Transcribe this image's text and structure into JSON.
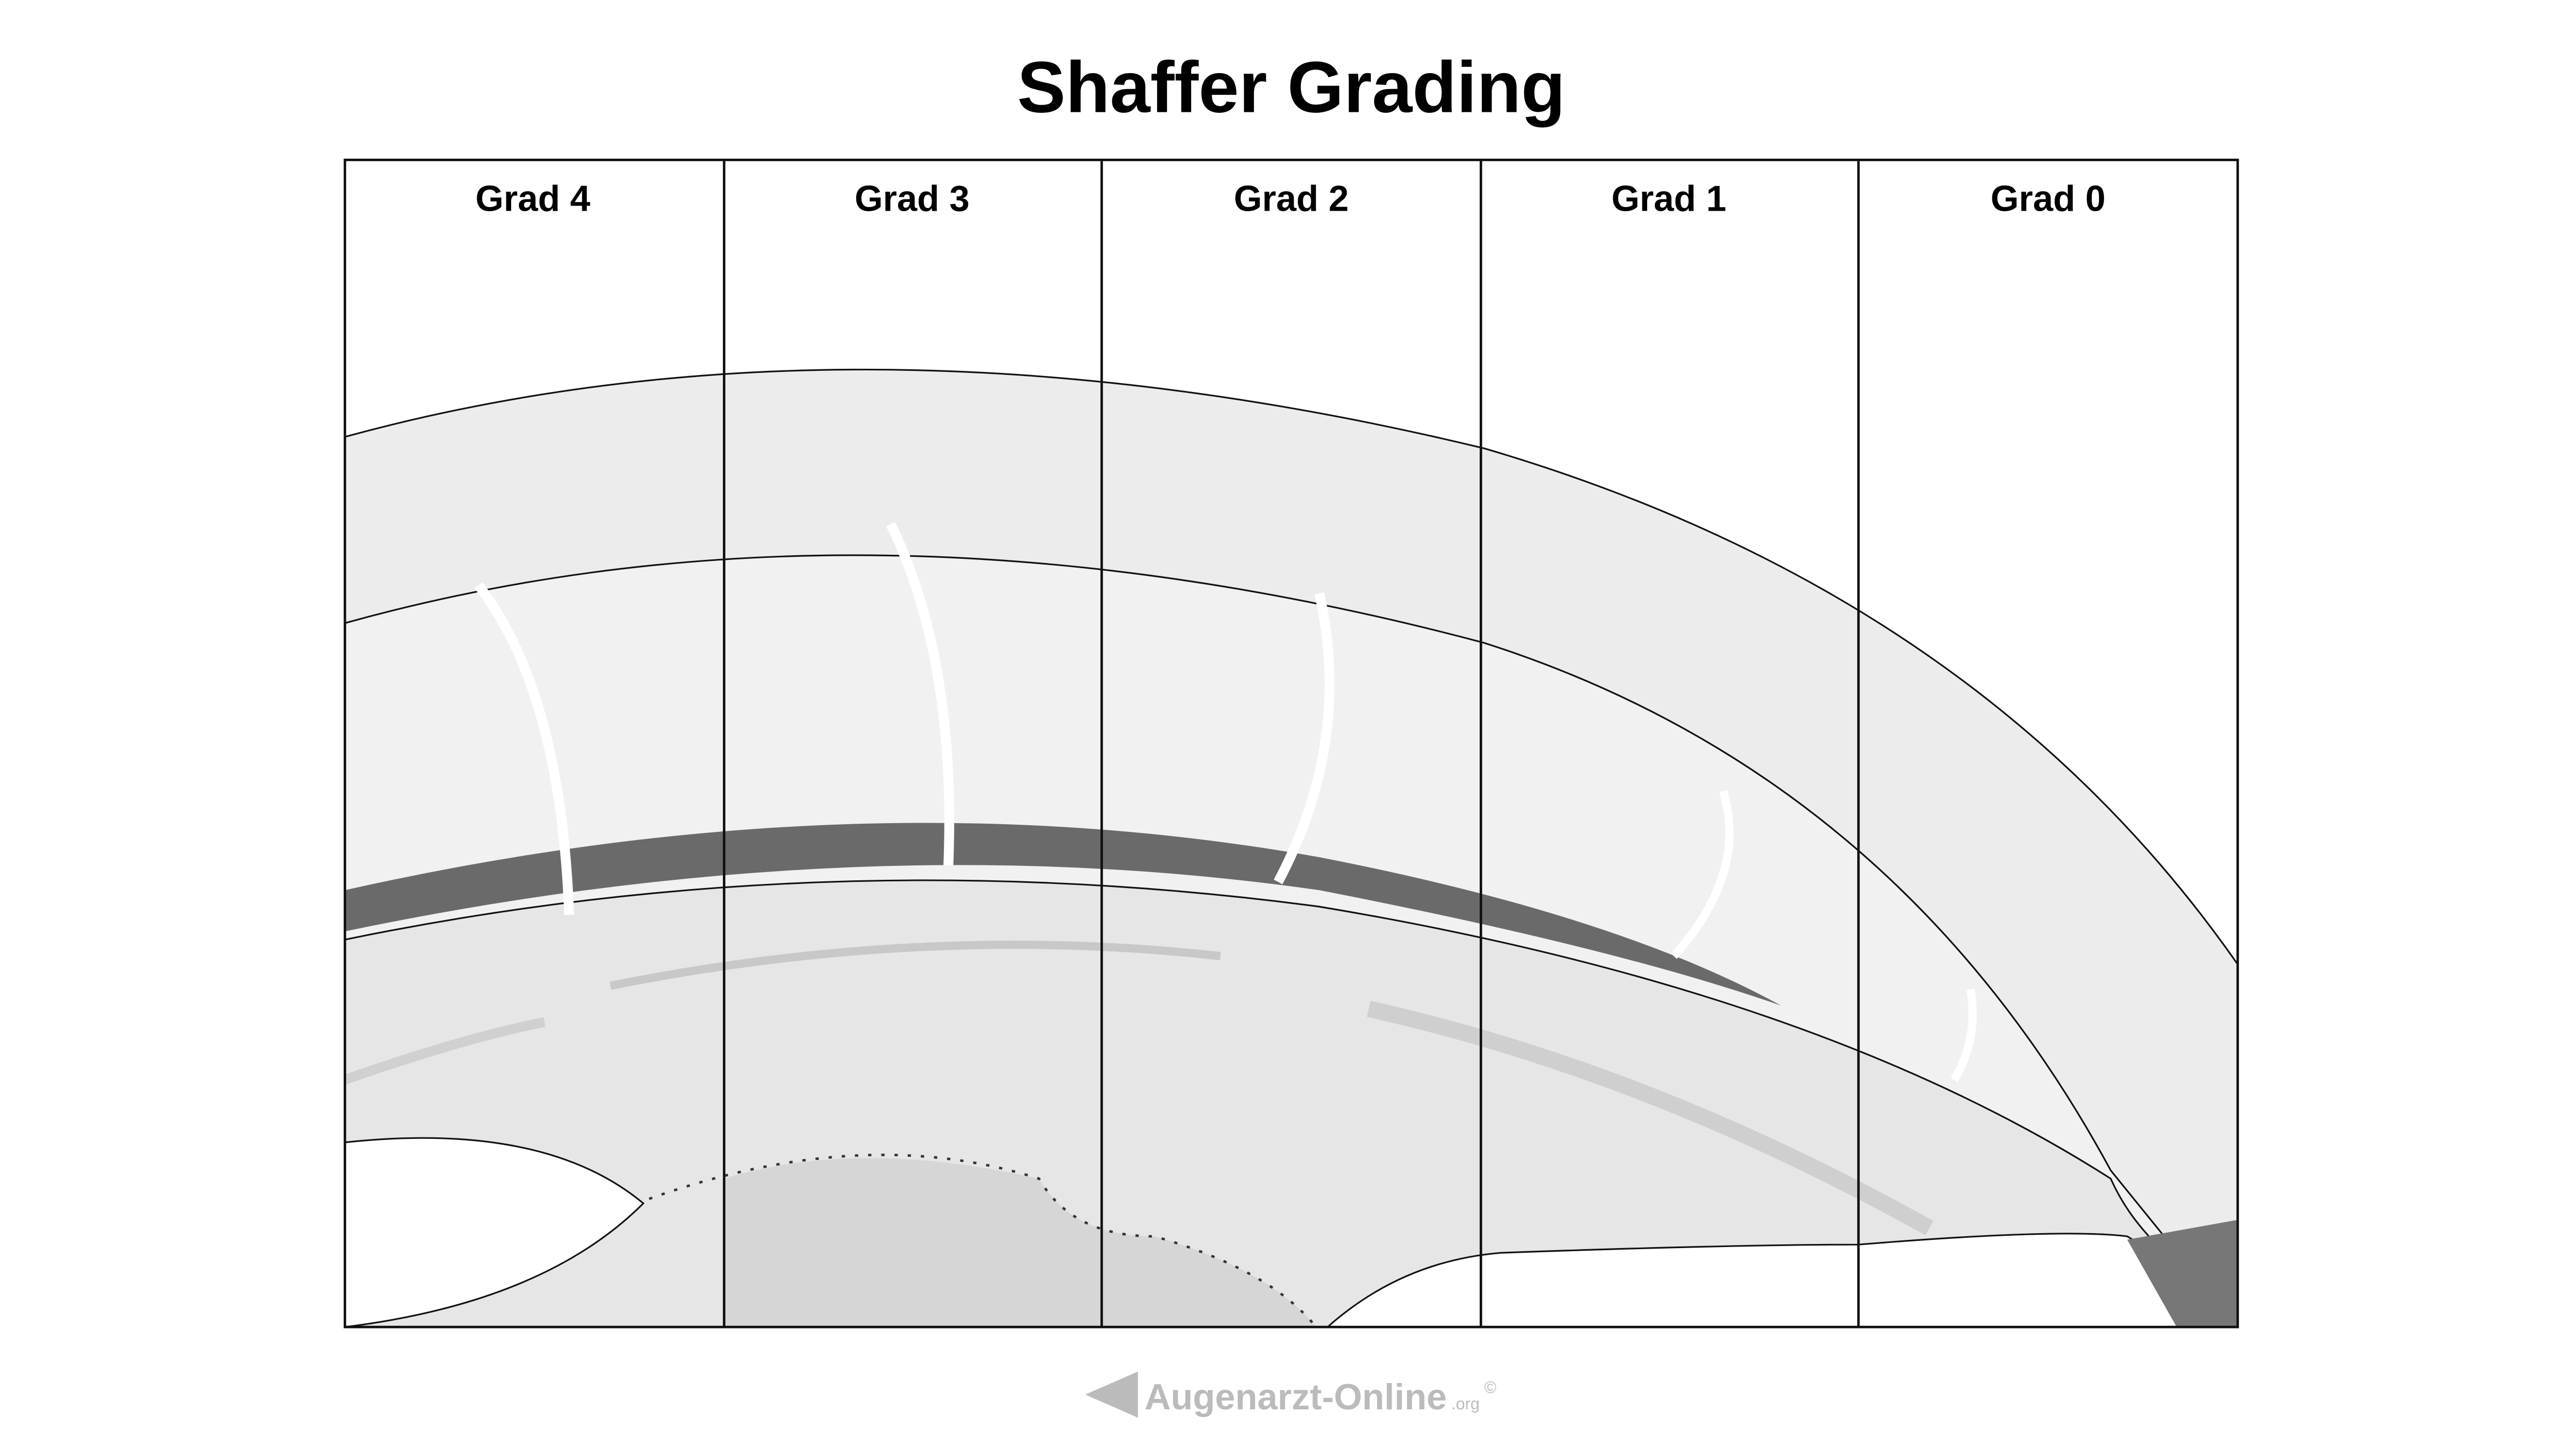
{
  "header": {
    "title": "Shaffer Grading"
  },
  "columns": [
    {
      "label": "Grad 4"
    },
    {
      "label": "Grad 3"
    },
    {
      "label": "Grad 2"
    },
    {
      "label": "Grad 1"
    },
    {
      "label": "Grad 0"
    }
  ],
  "footer": {
    "brand": "Augenarzt-Online",
    "suffix": ".org",
    "copyright": "©"
  }
}
